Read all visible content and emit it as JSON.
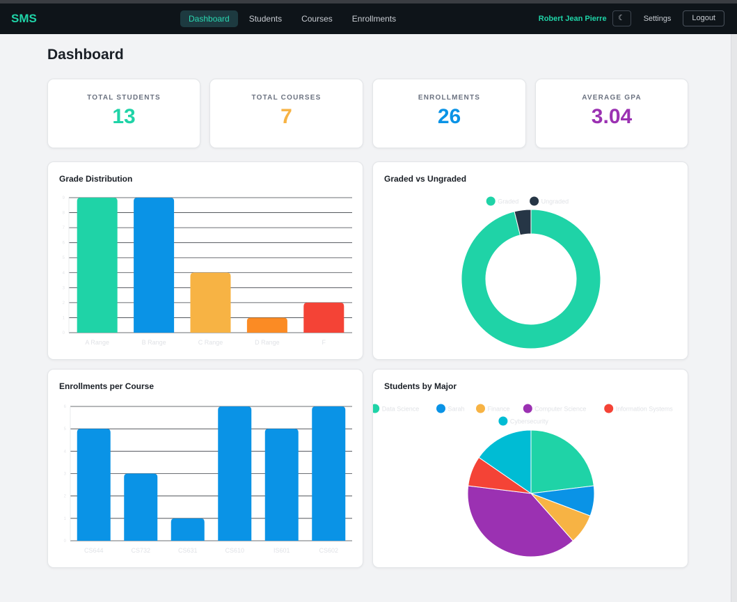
{
  "nav": {
    "brand": "SMS",
    "links": [
      {
        "label": "Dashboard",
        "active": true
      },
      {
        "label": "Students",
        "active": false
      },
      {
        "label": "Courses",
        "active": false
      },
      {
        "label": "Enrollments",
        "active": false
      }
    ],
    "user": "Robert Jean Pierre",
    "theme_icon": "☾",
    "settings": "Settings",
    "logout": "Logout"
  },
  "page": {
    "title": "Dashboard"
  },
  "stats": [
    {
      "label": "TOTAL STUDENTS",
      "value": "13",
      "color": "#1fd3a7"
    },
    {
      "label": "TOTAL COURSES",
      "value": "7",
      "color": "#f7b344"
    },
    {
      "label": "ENROLLMENTS",
      "value": "26",
      "color": "#0a93e6"
    },
    {
      "label": "AVERAGE GPA",
      "value": "3.04",
      "color": "#9b31b2"
    }
  ],
  "charts": {
    "grade_title": "Grade Distribution",
    "donut_title": "Graded vs Ungraded",
    "enroll_title": "Enrollments per Course",
    "major_title": "Students by Major"
  },
  "chart_data": [
    {
      "type": "bar",
      "title": "Grade Distribution",
      "categories": [
        "A Range",
        "B Range",
        "C Range",
        "D Range",
        "F"
      ],
      "values": [
        9,
        9,
        4,
        1,
        2
      ],
      "colors": [
        "#1fd3a7",
        "#0a93e6",
        "#f7b344",
        "#fb8b24",
        "#f44336"
      ],
      "ylim": [
        0,
        9
      ],
      "y_ticks": [
        0,
        1,
        2,
        3,
        4,
        5,
        6,
        7,
        8,
        9
      ],
      "grid": true
    },
    {
      "type": "pie",
      "title": "Graded vs Ungraded",
      "donut": true,
      "labels": [
        "Graded",
        "Ungraded"
      ],
      "values": [
        25,
        1
      ],
      "colors": [
        "#1fd3a7",
        "#263646"
      ],
      "legend": "top"
    },
    {
      "type": "bar",
      "title": "Enrollments per Course",
      "categories": [
        "CS644",
        "CS732",
        "CS631",
        "CS610",
        "IS601",
        "CS602"
      ],
      "values": [
        5,
        3,
        1,
        6,
        5,
        6
      ],
      "colors": [
        "#0a93e6",
        "#0a93e6",
        "#0a93e6",
        "#0a93e6",
        "#0a93e6",
        "#0a93e6"
      ],
      "ylim": [
        0,
        6
      ],
      "y_ticks": [
        0,
        1,
        2,
        3,
        4,
        5,
        6
      ],
      "grid": true
    },
    {
      "type": "pie",
      "title": "Students by Major",
      "labels": [
        "Data Science",
        "Sarah",
        "Finance",
        "Computer Science",
        "Information Systems",
        "Cybersecurity"
      ],
      "values": [
        3,
        1,
        1,
        5,
        1,
        2
      ],
      "colors": [
        "#1fd3a7",
        "#0a93e6",
        "#f7b344",
        "#9b31b2",
        "#f44336",
        "#00bcd4"
      ],
      "legend": "top"
    }
  ]
}
